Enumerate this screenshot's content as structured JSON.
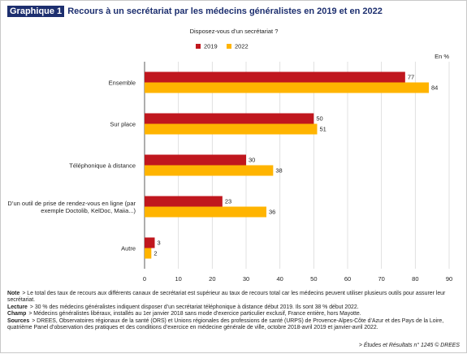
{
  "chart_data": {
    "type": "bar",
    "orientation": "horizontal",
    "figure_label": "Graphique 1",
    "title": "Recours à un secrétariat par les médecins généralistes en 2019 et en 2022",
    "subtitle": "Disposez-vous d’un secrétariat ?",
    "unit_label": "En %",
    "categories": [
      "Ensemble",
      "Sur place",
      "Téléphonique à distance",
      "D’un outil de prise de rendez-vous en ligne (par exemple Doctolib, KelDoc, Maiia...)",
      "Autre"
    ],
    "series": [
      {
        "name": "2019",
        "color": "#c0171e",
        "values": [
          77,
          50,
          30,
          23,
          3
        ]
      },
      {
        "name": "2022",
        "color": "#ffb400",
        "values": [
          84,
          51,
          38,
          36,
          2
        ]
      }
    ],
    "xlim": [
      0,
      90
    ],
    "xticks": [
      0,
      10,
      20,
      30,
      40,
      50,
      60,
      70,
      80,
      90
    ],
    "grid": true
  },
  "notes": [
    {
      "label": "Note",
      "text": "> Le total des taux de recours aux différents canaux de secrétariat est supérieur au taux de recours total car les médecins peuvent utiliser plusieurs outils pour assurer leur secrétariat."
    },
    {
      "label": "Lecture",
      "text": "> 30 % des médecins généralistes indiquent disposer d’un secrétariat téléphonique à distance début 2019. Ils sont 38 % début 2022."
    },
    {
      "label": "Champ",
      "text": "> Médecins généralistes libéraux, installés au 1er janvier 2018 sans mode d’exercice particulier exclusif, France entière, hors Mayotte."
    },
    {
      "label": "Sources",
      "text": "> DREES, Observatoires régionaux de la santé (ORS) et Unions régionales des professions de santé (URPS) de Provence-Alpes-Côte d’Azur et des Pays de la Loire, quatrième Panel d’observation des pratiques et des conditions d’exercice en médecine générale de ville, octobre 2018-avril 2019 et janvier-avril 2022."
    }
  ],
  "source": "> Études et Résultats n° 1245 © DREES"
}
